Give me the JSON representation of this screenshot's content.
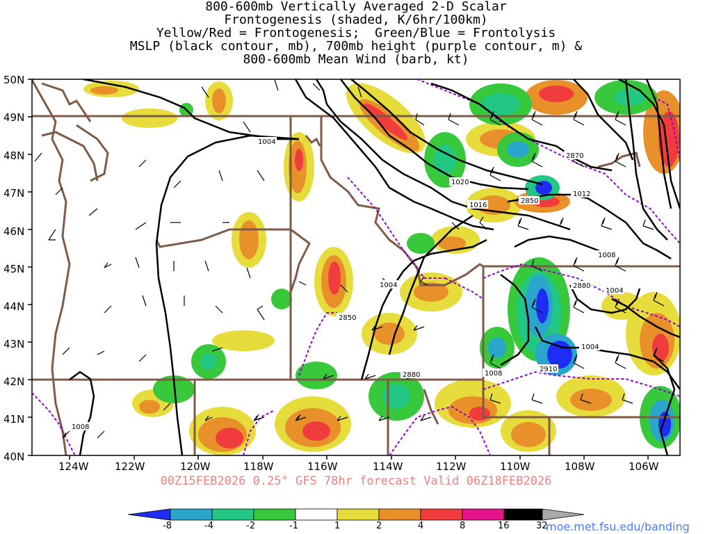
{
  "title": {
    "lines": [
      "800-600mb Vertically Averaged 2-D Scalar",
      "Frontogenesis (shaded, K/6hr/100km)",
      "Yellow/Red = Frontogenesis;  Green/Blue = Frontolysis",
      "MSLP (black contour, mb), 700mb height (purple contour, m) &",
      "800-600mb Mean Wind (barb, kt)"
    ]
  },
  "map": {
    "lat_labels": [
      "50N",
      "49N",
      "48N",
      "47N",
      "46N",
      "45N",
      "44N",
      "43N",
      "42N",
      "41N",
      "40N"
    ],
    "lon_labels": [
      "124W",
      "122W",
      "120W",
      "118W",
      "116W",
      "114W",
      "112W",
      "110W",
      "108W",
      "106W"
    ],
    "mslp_labels": [
      "1004",
      "1020",
      "1016",
      "1012",
      "1008",
      "1004",
      "1004",
      "1004",
      "1008",
      "1008"
    ],
    "height_labels": [
      "2870",
      "2850",
      "2880",
      "2850",
      "2880",
      "2910"
    ],
    "colors": {
      "mslp_contour": "#000000",
      "height_contour": "#9400d3",
      "state_border": "#7f5a46",
      "barb": "#000000"
    }
  },
  "run_info": "00Z15FEB2026 0.25° GFS 78hr forecast Valid 06Z18FEB2026",
  "colorbar": {
    "labels": [
      "-8",
      "-4",
      "-2",
      "-1",
      "1",
      "2",
      "4",
      "8",
      "16",
      "32"
    ],
    "colors": [
      "#1f2cf5",
      "#2aa6cc",
      "#23c784",
      "#37c93b",
      "#ffffff",
      "#e6dc3c",
      "#e8912a",
      "#f03c3c",
      "#e6148c",
      "#000000",
      "#aaaaaa"
    ]
  },
  "credit": "moe.met.fsu.edu/banding"
}
